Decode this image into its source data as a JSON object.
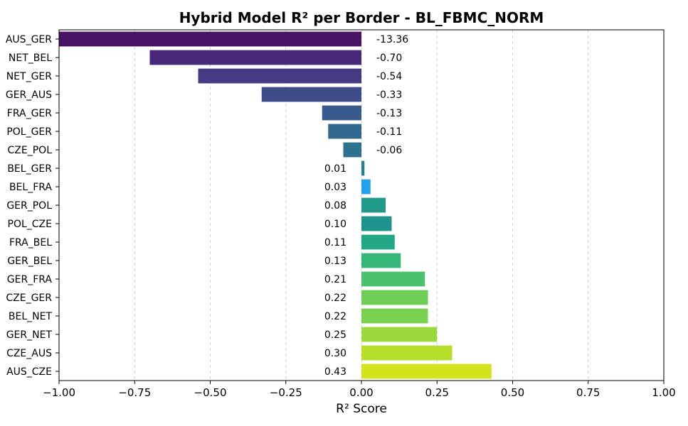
{
  "chart_data": {
    "type": "bar",
    "orientation": "horizontal",
    "title": "Hybrid Model R² per Border - BL_FBMC_NORM",
    "xlabel": "R² Score",
    "ylabel": "",
    "xlim": [
      -1.0,
      1.0
    ],
    "grid": "x-dashed",
    "xticks": [
      "−1.00",
      "−0.75",
      "−0.50",
      "−0.25",
      "0.00",
      "0.25",
      "0.50",
      "0.75",
      "1.00"
    ],
    "xtick_values": [
      -1.0,
      -0.75,
      -0.5,
      -0.25,
      0.0,
      0.25,
      0.5,
      0.75,
      1.0
    ],
    "categories": [
      "AUS_GER",
      "NET_BEL",
      "NET_GER",
      "GER_AUS",
      "FRA_GER",
      "POL_GER",
      "CZE_POL",
      "BEL_GER",
      "BEL_FRA",
      "GER_POL",
      "POL_CZE",
      "FRA_BEL",
      "GER_BEL",
      "GER_FRA",
      "CZE_GER",
      "BEL_NET",
      "GER_NET",
      "CZE_AUS",
      "AUS_CZE"
    ],
    "values": [
      -13.36,
      -0.7,
      -0.54,
      -0.33,
      -0.13,
      -0.11,
      -0.06,
      0.01,
      0.03,
      0.08,
      0.1,
      0.11,
      0.13,
      0.21,
      0.22,
      0.22,
      0.25,
      0.3,
      0.43
    ],
    "value_labels": [
      "-13.36",
      "-0.70",
      "-0.54",
      "-0.33",
      "-0.13",
      "-0.11",
      "-0.06",
      "0.01",
      "0.03",
      "0.08",
      "0.10",
      "0.11",
      "0.13",
      "0.21",
      "0.22",
      "0.22",
      "0.25",
      "0.30",
      "0.43"
    ],
    "colors": [
      "#471365",
      "#482878",
      "#443b84",
      "#3e4c8a",
      "#38598c",
      "#31688e",
      "#2c728e",
      "#277f8e",
      "#22a2ed",
      "#1f9a8a",
      "#1f948c",
      "#22a884",
      "#35b779",
      "#4ac16d",
      "#6ece58",
      "#7ad151",
      "#9bd93c",
      "#b5de2b",
      "#d2e21b"
    ],
    "palette": "viridis"
  }
}
